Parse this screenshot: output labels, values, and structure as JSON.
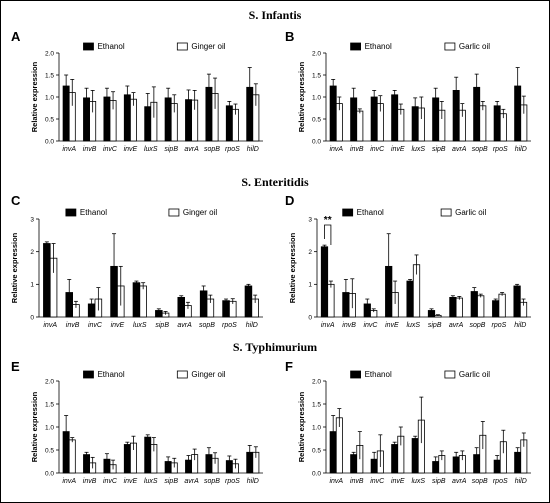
{
  "sections": [
    {
      "title": "S. Infantis"
    },
    {
      "title": "S. Enteritidis"
    },
    {
      "title": "S. Typhimurium"
    }
  ],
  "colors": {
    "ethanol": "#000000",
    "treated": "#ffffff",
    "outline": "#000000"
  },
  "chart_data": [
    {
      "panel": "A",
      "type": "bar",
      "categories": [
        "invA",
        "invB",
        "invC",
        "invE",
        "luxS",
        "sipB",
        "avrA",
        "sopB",
        "rpoS",
        "hilD"
      ],
      "ylabel": "Relative expression",
      "ylim": [
        0,
        2.0
      ],
      "yticks": [
        "0.0",
        "0.5",
        "1.0",
        "1.5",
        "2.0"
      ],
      "legend_position": "top",
      "series": [
        {
          "name": "Ethanol",
          "values": [
            1.25,
            0.98,
            1.0,
            1.05,
            0.78,
            0.98,
            0.94,
            1.22,
            0.8,
            1.22
          ],
          "errors": [
            0.25,
            0.22,
            0.2,
            0.2,
            0.3,
            0.22,
            0.22,
            0.3,
            0.1,
            0.45
          ]
        },
        {
          "name": "Ginger oil",
          "values": [
            1.1,
            0.9,
            0.92,
            0.95,
            0.88,
            0.85,
            0.93,
            1.08,
            0.72,
            1.05
          ],
          "errors": [
            0.3,
            0.25,
            0.2,
            0.15,
            0.35,
            0.2,
            0.22,
            0.35,
            0.12,
            0.25
          ]
        }
      ]
    },
    {
      "panel": "B",
      "type": "bar",
      "categories": [
        "invA",
        "invB",
        "invC",
        "invE",
        "luxS",
        "sipB",
        "avrA",
        "sopB",
        "rpoS",
        "hilD"
      ],
      "ylabel": "Relative expression",
      "ylim": [
        0,
        2.0
      ],
      "yticks": [
        "0.0",
        "0.5",
        "1.0",
        "1.5",
        "2.0"
      ],
      "legend_position": "top",
      "series": [
        {
          "name": "Ethanol",
          "values": [
            1.25,
            0.98,
            1.0,
            1.05,
            0.78,
            0.98,
            1.15,
            1.22,
            0.8,
            1.25
          ],
          "errors": [
            0.15,
            0.22,
            0.15,
            0.1,
            0.2,
            0.22,
            0.3,
            0.3,
            0.1,
            0.42
          ]
        },
        {
          "name": "Garlic oil",
          "values": [
            0.85,
            0.68,
            0.85,
            0.72,
            0.75,
            0.7,
            0.7,
            0.8,
            0.62,
            0.82
          ],
          "errors": [
            0.15,
            0.05,
            0.18,
            0.12,
            0.25,
            0.2,
            0.15,
            0.1,
            0.1,
            0.2
          ]
        }
      ]
    },
    {
      "panel": "C",
      "type": "bar",
      "categories": [
        "invA",
        "invB",
        "invC",
        "invE",
        "luxS",
        "sipB",
        "avrA",
        "sopB",
        "rpoS",
        "hilD"
      ],
      "ylabel": "Relative expression",
      "ylim": [
        0,
        3
      ],
      "yticks": [
        "0",
        "1",
        "2",
        "3"
      ],
      "legend_position": "top",
      "series": [
        {
          "name": "Ethanol",
          "values": [
            2.25,
            0.75,
            0.4,
            1.55,
            1.05,
            0.2,
            0.6,
            0.8,
            0.5,
            0.95
          ],
          "errors": [
            0.05,
            0.4,
            0.15,
            1.0,
            0.05,
            0.05,
            0.05,
            0.15,
            0.05,
            0.05
          ]
        },
        {
          "name": "Ginger oil",
          "values": [
            1.8,
            0.38,
            0.55,
            0.95,
            0.95,
            0.12,
            0.35,
            0.55,
            0.48,
            0.55
          ],
          "errors": [
            0.45,
            0.1,
            0.35,
            0.6,
            0.1,
            0.05,
            0.1,
            0.12,
            0.08,
            0.12
          ]
        }
      ]
    },
    {
      "panel": "D",
      "type": "bar",
      "categories": [
        "invA",
        "invB",
        "invC",
        "invE",
        "luxS",
        "sipB",
        "avrA",
        "sopB",
        "rpoS",
        "hilD"
      ],
      "ylabel": "Relative expression",
      "ylim": [
        0,
        3
      ],
      "yticks": [
        "0",
        "1",
        "2",
        "3"
      ],
      "legend_position": "top",
      "annotation": "**",
      "series": [
        {
          "name": "Ethanol",
          "values": [
            2.15,
            0.75,
            0.4,
            1.55,
            1.1,
            0.2,
            0.6,
            0.78,
            0.5,
            0.95
          ],
          "errors": [
            0.05,
            0.4,
            0.15,
            1.0,
            0.05,
            0.05,
            0.05,
            0.12,
            0.05,
            0.05
          ]
        },
        {
          "name": "Garlic oil",
          "values": [
            1.0,
            0.72,
            0.2,
            0.75,
            1.6,
            0.05,
            0.58,
            0.65,
            0.7,
            0.45
          ],
          "errors": [
            0.1,
            0.45,
            0.05,
            0.35,
            0.3,
            0.02,
            0.05,
            0.05,
            0.05,
            0.1
          ]
        }
      ]
    },
    {
      "panel": "E",
      "type": "bar",
      "categories": [
        "invA",
        "invB",
        "invC",
        "invE",
        "luxS",
        "sipB",
        "avrA",
        "sopB",
        "rpoS",
        "hilD"
      ],
      "ylabel": "Relative expression",
      "ylim": [
        0,
        2.0
      ],
      "yticks": [
        "0.0",
        "0.5",
        "1.0",
        "1.5",
        "2.0"
      ],
      "legend_position": "top",
      "series": [
        {
          "name": "Ethanol",
          "values": [
            0.9,
            0.4,
            0.3,
            0.62,
            0.78,
            0.25,
            0.28,
            0.4,
            0.27,
            0.45
          ],
          "errors": [
            0.35,
            0.05,
            0.12,
            0.05,
            0.05,
            0.1,
            0.1,
            0.15,
            0.1,
            0.15
          ]
        },
        {
          "name": "Ginger oil",
          "values": [
            0.72,
            0.22,
            0.18,
            0.65,
            0.62,
            0.22,
            0.4,
            0.32,
            0.2,
            0.45
          ],
          "errors": [
            0.05,
            0.12,
            0.1,
            0.15,
            0.15,
            0.1,
            0.12,
            0.12,
            0.1,
            0.12
          ]
        }
      ]
    },
    {
      "panel": "F",
      "type": "bar",
      "categories": [
        "invA",
        "invB",
        "invC",
        "invE",
        "luxS",
        "sipB",
        "avrA",
        "sopB",
        "rpoS",
        "hilD"
      ],
      "ylabel": "Relative expression",
      "ylim": [
        0,
        2.0
      ],
      "yticks": [
        "0.0",
        "0.5",
        "1.0",
        "1.5",
        "2.0"
      ],
      "legend_position": "top",
      "series": [
        {
          "name": "Ethanol",
          "values": [
            0.9,
            0.4,
            0.3,
            0.62,
            0.75,
            0.25,
            0.35,
            0.4,
            0.28,
            0.45
          ],
          "errors": [
            0.35,
            0.05,
            0.15,
            0.05,
            0.05,
            0.1,
            0.1,
            0.15,
            0.1,
            0.1
          ]
        },
        {
          "name": "Garlic oil",
          "values": [
            1.2,
            0.6,
            0.48,
            0.8,
            1.15,
            0.38,
            0.38,
            0.82,
            0.68,
            0.72
          ],
          "errors": [
            0.2,
            0.3,
            0.35,
            0.2,
            0.5,
            0.1,
            0.1,
            0.3,
            0.25,
            0.15
          ]
        }
      ]
    }
  ]
}
